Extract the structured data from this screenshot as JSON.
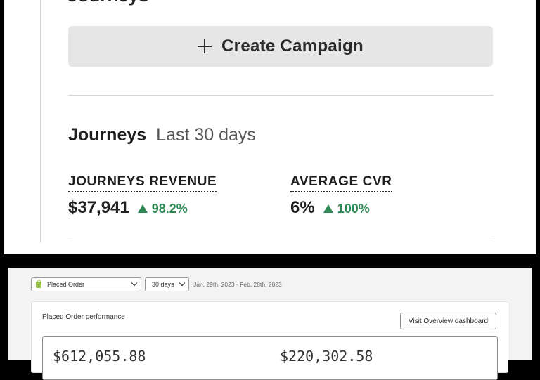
{
  "top": {
    "cropped_heading": "Journeys",
    "create_button_label": "Create Campaign",
    "journeys": {
      "title": "Journeys",
      "period": "Last 30 days",
      "metrics": [
        {
          "label": "JOURNEYS REVENUE",
          "value": "$37,941",
          "change": "98.2%"
        },
        {
          "label": "AVERAGE CVR",
          "value": "6%",
          "change": "100%"
        }
      ]
    }
  },
  "filters": {
    "metric_select": "Placed Order",
    "period_select": "30 days",
    "date_range": "Jan. 29th, 2023 - Feb. 28th, 2023"
  },
  "performance": {
    "title": "Placed Order performance",
    "visit_button": "Visit Overview dashboard",
    "stats": [
      "$612,055.88",
      "$220,302.58"
    ]
  },
  "icons": {
    "plus": "plus-icon",
    "trend_up": "triangle-up-icon",
    "store": "shopify-bag-icon",
    "dropdown": "chevron-down-icon"
  },
  "colors": {
    "positive": "#2e8a55",
    "button_bg": "#e6e6e6",
    "store_icon": "#95bf47"
  }
}
